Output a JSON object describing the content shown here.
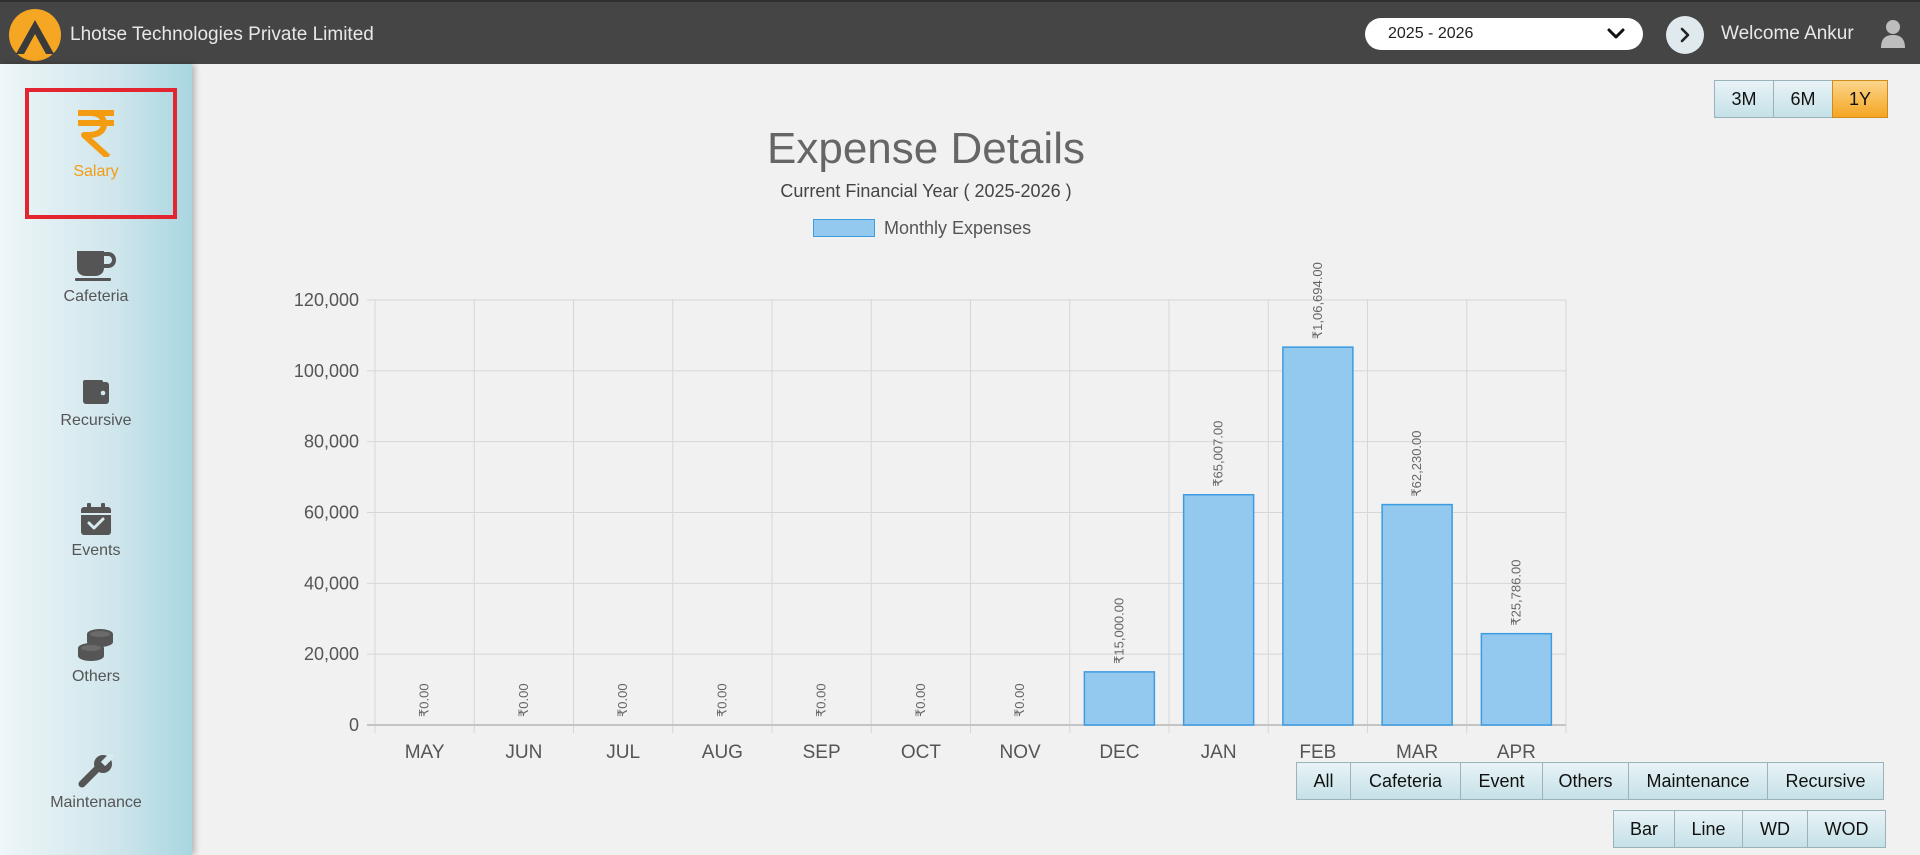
{
  "header": {
    "company": "Lhotse Technologies Private Limited",
    "year_select": "2025 - 2026",
    "welcome": "Welcome Ankur"
  },
  "sidebar": {
    "items": [
      {
        "label": "Salary",
        "icon": "rupee-icon"
      },
      {
        "label": "Cafeteria",
        "icon": "coffee-cup-icon"
      },
      {
        "label": "Recursive",
        "icon": "wallet-icon"
      },
      {
        "label": "Events",
        "icon": "calendar-check-icon"
      },
      {
        "label": "Others",
        "icon": "coins-icon"
      },
      {
        "label": "Maintenance",
        "icon": "wrench-icon"
      }
    ]
  },
  "range_buttons": [
    "3M",
    "6M",
    "1Y"
  ],
  "range_active": "1Y",
  "filter_buttons": [
    "All",
    "Cafeteria",
    "Event",
    "Others",
    "Maintenance",
    "Recursive"
  ],
  "type_buttons": [
    "Bar",
    "Line",
    "WD",
    "WOD"
  ],
  "colors": {
    "accent": "#f39c12",
    "bar_fill": "#93c9ee",
    "bar_border": "#3d9be0",
    "highlight": "#e3252f"
  },
  "chart_data": {
    "type": "bar",
    "title": "Expense Details",
    "subtitle": "Current Financial Year ( 2025-2026 )",
    "legend": "Monthly Expenses",
    "categories": [
      "MAY",
      "JUN",
      "JUL",
      "AUG",
      "SEP",
      "OCT",
      "NOV",
      "DEC",
      "JAN",
      "FEB",
      "MAR",
      "APR"
    ],
    "values": [
      0,
      0,
      0,
      0,
      0,
      0,
      0,
      15000,
      65007,
      106694,
      62230,
      25786
    ],
    "data_labels": [
      "₹0.00",
      "₹0.00",
      "₹0.00",
      "₹0.00",
      "₹0.00",
      "₹0.00",
      "₹0.00",
      "₹15,000.00",
      "₹65,007.00",
      "₹1,06,694.00",
      "₹62,230.00",
      "₹25,786.00"
    ],
    "y_ticks": [
      0,
      20000,
      40000,
      60000,
      80000,
      100000,
      120000
    ],
    "y_tick_labels": [
      "0",
      "20,000",
      "40,000",
      "60,000",
      "80,000",
      "100,000",
      "120,000"
    ],
    "ylim": [
      0,
      120000
    ],
    "grid": true
  }
}
